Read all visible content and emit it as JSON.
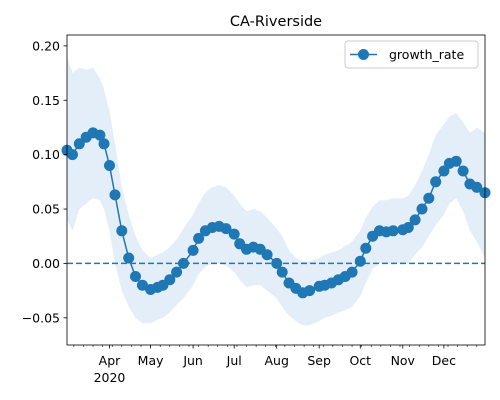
{
  "chart_data": {
    "type": "line",
    "title": "CA-Riverside",
    "xlabel": "",
    "ylabel": "",
    "xlim": [
      "2020-03-01",
      "2020-12-31"
    ],
    "ylim": [
      -0.075,
      0.21
    ],
    "yticks": [
      -0.05,
      0.0,
      0.05,
      0.1,
      0.15,
      0.2
    ],
    "ytick_labels": [
      "−0.05",
      "0.00",
      "0.05",
      "0.10",
      "0.15",
      "0.20"
    ],
    "xticks": [
      {
        "date": "2020-04-01",
        "label": "Apr"
      },
      {
        "date": "2020-05-01",
        "label": "May"
      },
      {
        "date": "2020-06-01",
        "label": "Jun"
      },
      {
        "date": "2020-07-01",
        "label": "Jul"
      },
      {
        "date": "2020-08-01",
        "label": "Aug"
      },
      {
        "date": "2020-09-01",
        "label": "Sep"
      },
      {
        "date": "2020-10-01",
        "label": "Oct"
      },
      {
        "date": "2020-11-01",
        "label": "Nov"
      },
      {
        "date": "2020-12-01",
        "label": "Dec"
      }
    ],
    "year_label": "2020",
    "legend": {
      "placement": "top-right",
      "entries": [
        "growth_rate"
      ]
    },
    "reference_line": {
      "y": 0.0,
      "style": "dashed"
    },
    "colors": {
      "line": "#1f77b4",
      "band": "#dae8f5"
    },
    "series": [
      {
        "name": "growth_rate",
        "marker": "circle",
        "x": [
          "2020-03-01",
          "2020-03-05",
          "2020-03-10",
          "2020-03-15",
          "2020-03-20",
          "2020-03-25",
          "2020-03-28",
          "2020-04-01",
          "2020-04-05",
          "2020-04-10",
          "2020-04-15",
          "2020-04-20",
          "2020-04-25",
          "2020-05-01",
          "2020-05-06",
          "2020-05-10",
          "2020-05-15",
          "2020-05-20",
          "2020-05-25",
          "2020-06-01",
          "2020-06-05",
          "2020-06-10",
          "2020-06-15",
          "2020-06-20",
          "2020-06-25",
          "2020-07-01",
          "2020-07-05",
          "2020-07-10",
          "2020-07-15",
          "2020-07-20",
          "2020-07-25",
          "2020-08-01",
          "2020-08-05",
          "2020-08-10",
          "2020-08-15",
          "2020-08-20",
          "2020-08-25",
          "2020-09-01",
          "2020-09-05",
          "2020-09-10",
          "2020-09-15",
          "2020-09-20",
          "2020-09-25",
          "2020-10-01",
          "2020-10-05",
          "2020-10-10",
          "2020-10-15",
          "2020-10-20",
          "2020-10-25",
          "2020-11-01",
          "2020-11-05",
          "2020-11-10",
          "2020-11-15",
          "2020-11-20",
          "2020-11-25",
          "2020-12-01",
          "2020-12-05",
          "2020-12-10",
          "2020-12-15",
          "2020-12-20",
          "2020-12-25",
          "2020-12-31"
        ],
        "y": [
          0.104,
          0.1,
          0.11,
          0.116,
          0.12,
          0.118,
          0.11,
          0.09,
          0.063,
          0.03,
          0.005,
          -0.012,
          -0.02,
          -0.024,
          -0.022,
          -0.02,
          -0.015,
          -0.008,
          0.0,
          0.012,
          0.023,
          0.03,
          0.033,
          0.034,
          0.032,
          0.027,
          0.018,
          0.013,
          0.015,
          0.013,
          0.008,
          0.0,
          -0.008,
          -0.018,
          -0.023,
          -0.027,
          -0.025,
          -0.021,
          -0.02,
          -0.018,
          -0.015,
          -0.012,
          -0.008,
          0.002,
          0.014,
          0.025,
          0.03,
          0.029,
          0.03,
          0.031,
          0.033,
          0.04,
          0.05,
          0.06,
          0.075,
          0.085,
          0.092,
          0.094,
          0.085,
          0.073,
          0.07,
          0.065
        ],
        "lower": [
          0.04,
          0.03,
          0.05,
          0.055,
          0.06,
          0.058,
          0.05,
          0.03,
          0.0,
          -0.025,
          -0.04,
          -0.05,
          -0.055,
          -0.055,
          -0.052,
          -0.05,
          -0.045,
          -0.038,
          -0.032,
          -0.02,
          -0.01,
          -0.003,
          0.0,
          0.0,
          -0.002,
          -0.008,
          -0.015,
          -0.022,
          -0.02,
          -0.02,
          -0.025,
          -0.032,
          -0.04,
          -0.048,
          -0.053,
          -0.057,
          -0.057,
          -0.053,
          -0.05,
          -0.048,
          -0.045,
          -0.043,
          -0.04,
          -0.03,
          -0.018,
          -0.005,
          0.0,
          0.0,
          0.0,
          0.0,
          0.0,
          0.008,
          0.015,
          0.025,
          0.035,
          0.045,
          0.055,
          0.06,
          0.048,
          0.03,
          0.02,
          0.005
        ],
        "upper": [
          0.19,
          0.175,
          0.18,
          0.178,
          0.18,
          0.17,
          0.16,
          0.14,
          0.11,
          0.07,
          0.045,
          0.025,
          0.012,
          0.005,
          0.008,
          0.01,
          0.015,
          0.022,
          0.032,
          0.045,
          0.055,
          0.065,
          0.07,
          0.072,
          0.07,
          0.062,
          0.055,
          0.048,
          0.05,
          0.048,
          0.042,
          0.032,
          0.025,
          0.012,
          0.005,
          0.002,
          0.002,
          0.005,
          0.008,
          0.01,
          0.012,
          0.016,
          0.02,
          0.03,
          0.042,
          0.052,
          0.058,
          0.058,
          0.06,
          0.06,
          0.062,
          0.072,
          0.085,
          0.1,
          0.118,
          0.128,
          0.135,
          0.138,
          0.13,
          0.12,
          0.125,
          0.12
        ]
      }
    ]
  }
}
